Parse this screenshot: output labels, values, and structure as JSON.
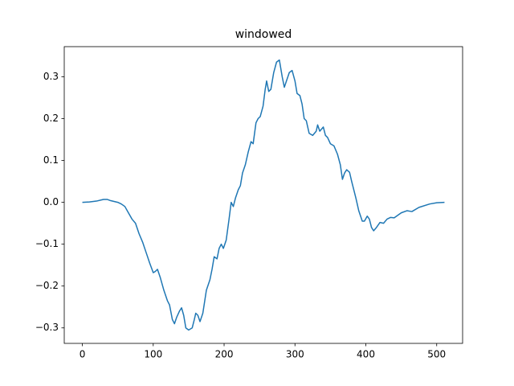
{
  "chart_data": {
    "type": "line",
    "title": "windowed",
    "x": [
      0,
      10,
      20,
      30,
      35,
      40,
      50,
      55,
      60,
      65,
      70,
      75,
      80,
      85,
      90,
      95,
      100,
      103,
      106,
      110,
      115,
      120,
      123,
      127,
      130,
      133,
      137,
      140,
      143,
      146,
      150,
      155,
      158,
      160,
      163,
      166,
      170,
      175,
      180,
      183,
      186,
      190,
      193,
      196,
      199,
      203,
      207,
      210,
      213,
      216,
      220,
      223,
      226,
      230,
      234,
      238,
      241,
      245,
      248,
      251,
      255,
      258,
      260,
      263,
      266,
      270,
      274,
      278,
      282,
      285,
      288,
      292,
      296,
      300,
      303,
      307,
      310,
      313,
      316,
      320,
      325,
      330,
      332,
      335,
      340,
      343,
      346,
      350,
      355,
      360,
      364,
      367,
      370,
      373,
      377,
      380,
      383,
      386,
      390,
      395,
      398,
      402,
      405,
      408,
      411,
      415,
      420,
      425,
      430,
      435,
      440,
      450,
      458,
      465,
      475,
      490,
      500,
      511
    ],
    "series": [
      {
        "color": "#1f77b4",
        "values": [
          0,
          0.001,
          0.003,
          0.007,
          0.007,
          0.004,
          0.0,
          -0.004,
          -0.01,
          -0.025,
          -0.04,
          -0.05,
          -0.075,
          -0.095,
          -0.12,
          -0.145,
          -0.168,
          -0.165,
          -0.16,
          -0.18,
          -0.21,
          -0.235,
          -0.245,
          -0.28,
          -0.29,
          -0.275,
          -0.26,
          -0.252,
          -0.27,
          -0.3,
          -0.305,
          -0.3,
          -0.28,
          -0.265,
          -0.27,
          -0.285,
          -0.265,
          -0.21,
          -0.185,
          -0.16,
          -0.13,
          -0.135,
          -0.11,
          -0.1,
          -0.11,
          -0.09,
          -0.04,
          0.0,
          -0.01,
          0.01,
          0.03,
          0.04,
          0.07,
          0.09,
          0.12,
          0.145,
          0.14,
          0.19,
          0.2,
          0.205,
          0.23,
          0.27,
          0.29,
          0.265,
          0.27,
          0.31,
          0.335,
          0.34,
          0.3,
          0.275,
          0.29,
          0.31,
          0.315,
          0.29,
          0.26,
          0.255,
          0.235,
          0.2,
          0.195,
          0.165,
          0.16,
          0.17,
          0.185,
          0.17,
          0.18,
          0.16,
          0.155,
          0.14,
          0.135,
          0.115,
          0.09,
          0.055,
          0.07,
          0.078,
          0.072,
          0.05,
          0.03,
          0.01,
          -0.02,
          -0.045,
          -0.045,
          -0.033,
          -0.04,
          -0.06,
          -0.068,
          -0.06,
          -0.048,
          -0.05,
          -0.04,
          -0.036,
          -0.037,
          -0.025,
          -0.02,
          -0.022,
          -0.012,
          -0.004,
          -0.001,
          0.0
        ]
      }
    ],
    "xlim": [
      -25.55,
      536.55
    ],
    "ylim": [
      -0.337,
      0.372
    ],
    "xticks": [
      0,
      100,
      200,
      300,
      400,
      500
    ],
    "yticks": [
      {
        "value": -0.3,
        "label": "−0.3"
      },
      {
        "value": -0.2,
        "label": "−0.2"
      },
      {
        "value": -0.1,
        "label": "−0.1"
      },
      {
        "value": 0,
        "label": "0.0"
      },
      0.1,
      0.2,
      0.3
    ]
  }
}
